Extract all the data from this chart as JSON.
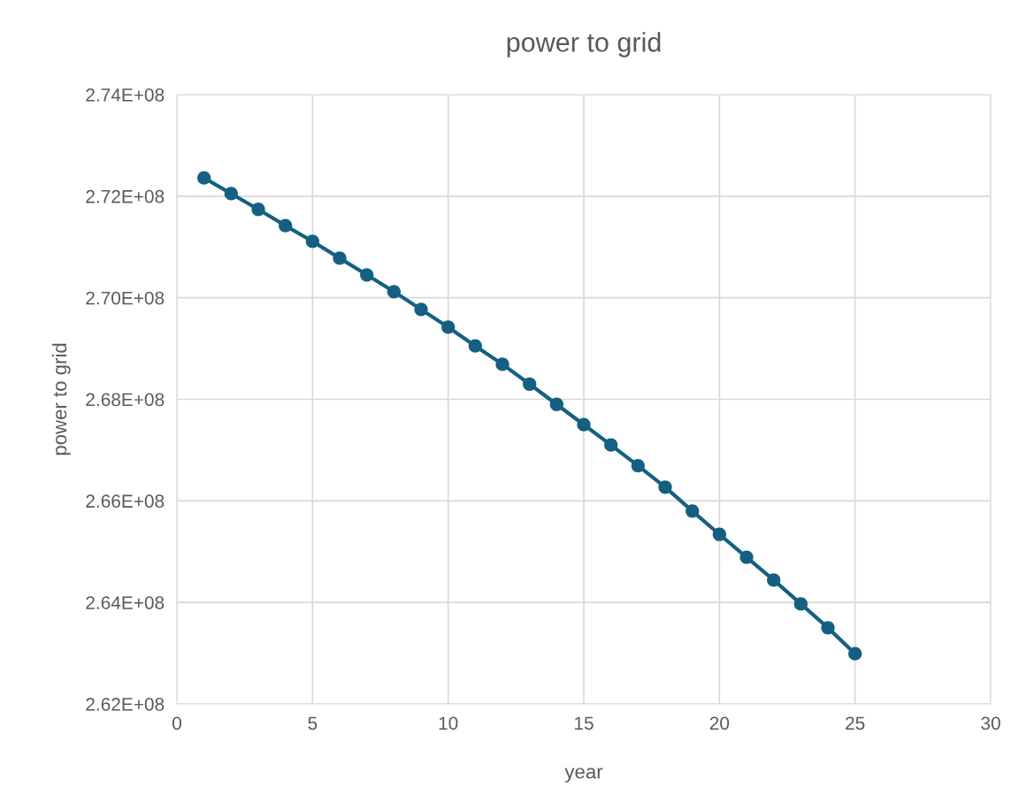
{
  "chart_data": {
    "type": "line",
    "title": "power to grid",
    "xlabel": "year",
    "ylabel": "power to grid",
    "x": [
      1,
      2,
      3,
      4,
      5,
      6,
      7,
      8,
      9,
      10,
      11,
      12,
      13,
      14,
      15,
      16,
      17,
      18,
      19,
      20,
      21,
      22,
      23,
      24,
      25
    ],
    "series": [
      {
        "color": "#156082",
        "values": [
          272360000,
          272050000,
          271740000,
          271420000,
          271110000,
          270780000,
          270450000,
          270120000,
          269770000,
          269420000,
          269050000,
          268690000,
          268300000,
          267900000,
          267500000,
          267100000,
          266690000,
          266270000,
          265800000,
          265340000,
          264890000,
          264440000,
          263970000,
          263500000,
          262990000
        ]
      }
    ],
    "xlim": [
      0,
      30
    ],
    "xticks": [
      0,
      5,
      10,
      15,
      20,
      25,
      30
    ],
    "ylim": [
      262000000,
      274000000
    ],
    "yticks": [
      {
        "value": 262000000,
        "label": "2.62E+08"
      },
      {
        "value": 264000000,
        "label": "2.64E+08"
      },
      {
        "value": 266000000,
        "label": "2.66E+08"
      },
      {
        "value": 268000000,
        "label": "2.68E+08"
      },
      {
        "value": 270000000,
        "label": "2.70E+08"
      },
      {
        "value": 272000000,
        "label": "2.72E+08"
      },
      {
        "value": 274000000,
        "label": "2.74E+08"
      }
    ],
    "grid": true,
    "marker": "circle",
    "line_style": "solid"
  }
}
